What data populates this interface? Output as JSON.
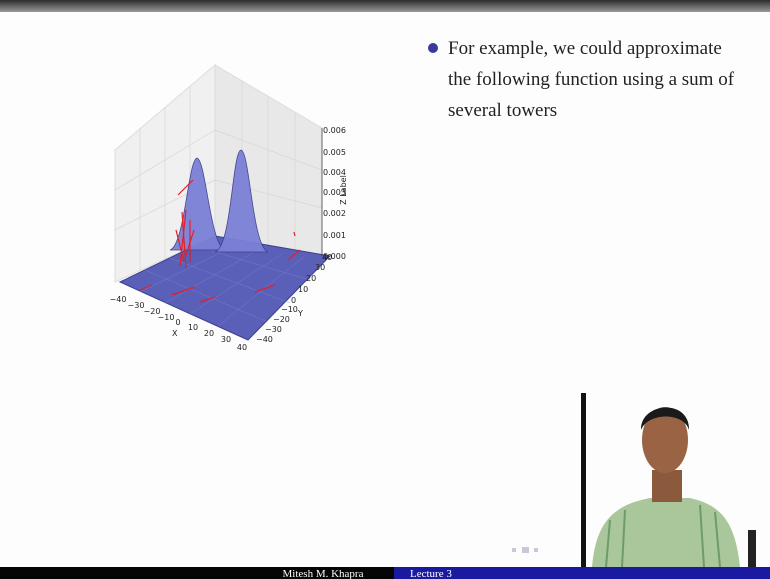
{
  "bullet": {
    "lines": [
      "For example, we could approximate",
      "the following function using a sum of",
      "several towers"
    ]
  },
  "plot": {
    "x_label": "X",
    "y_label": "Y",
    "z_label": "Z Label",
    "x_ticks": [
      "−40",
      "−30",
      "−20",
      "−10",
      "0",
      "10",
      "20",
      "30",
      "40"
    ],
    "y_ticks": [
      "−40",
      "−30",
      "−20",
      "−10",
      "0",
      "10",
      "20",
      "30",
      "40"
    ],
    "z_ticks": [
      "0.000",
      "0.001",
      "0.002",
      "0.003",
      "0.004",
      "0.005",
      "0.006"
    ]
  },
  "footer": {
    "author": "Mitesh M. Khapra",
    "lecture": "Lecture 3"
  }
}
